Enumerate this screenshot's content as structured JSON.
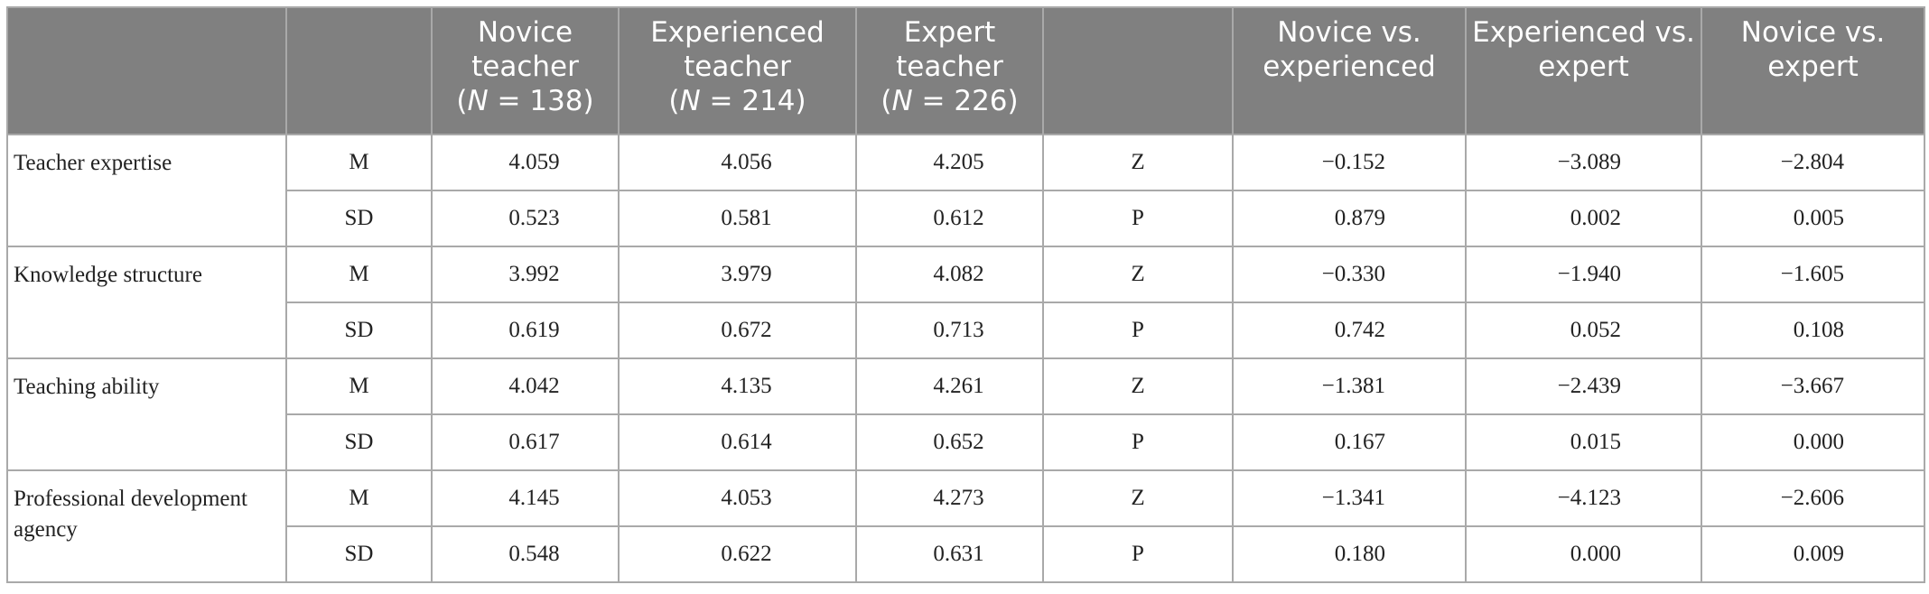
{
  "table": {
    "header": [
      {
        "pre": "Novice teacher",
        "open": "(",
        "italic": "N",
        "post": " = 138)"
      },
      {
        "pre": "Experienced teacher",
        "open": "(",
        "italic": "N",
        "post": " = 214)"
      },
      {
        "pre": "Expert teacher",
        "open": "(",
        "italic": "N",
        "post": " = 226)"
      },
      "Novice vs. experienced",
      "Experienced vs. expert",
      "Novice vs. expert"
    ],
    "groups": [
      {
        "label": "Teacher expertise",
        "rows": [
          {
            "stat": "M",
            "values": [
              "4.059",
              "4.056",
              "4.205"
            ],
            "test": "Z",
            "tests": [
              "−0.152",
              "−3.089",
              "−2.804"
            ]
          },
          {
            "stat": "SD",
            "values": [
              "0.523",
              "0.581",
              "0.612"
            ],
            "test": "P",
            "tests": [
              "0.879",
              "0.002",
              "0.005"
            ]
          }
        ]
      },
      {
        "label": "Knowledge structure",
        "rows": [
          {
            "stat": "M",
            "values": [
              "3.992",
              "3.979",
              "4.082"
            ],
            "test": "Z",
            "tests": [
              "−0.330",
              "−1.940",
              "−1.605"
            ]
          },
          {
            "stat": "SD",
            "values": [
              "0.619",
              "0.672",
              "0.713"
            ],
            "test": "P",
            "tests": [
              "0.742",
              "0.052",
              "0.108"
            ]
          }
        ]
      },
      {
        "label": "Teaching ability",
        "rows": [
          {
            "stat": "M",
            "values": [
              "4.042",
              "4.135",
              "4.261"
            ],
            "test": "Z",
            "tests": [
              "−1.381",
              "−2.439",
              "−3.667"
            ]
          },
          {
            "stat": "SD",
            "values": [
              "0.617",
              "0.614",
              "0.652"
            ],
            "test": "P",
            "tests": [
              "0.167",
              "0.015",
              "0.000"
            ]
          }
        ]
      },
      {
        "label": "Professional development agency",
        "rows": [
          {
            "stat": "M",
            "values": [
              "4.145",
              "4.053",
              "4.273"
            ],
            "test": "Z",
            "tests": [
              "−1.341",
              "−4.123",
              "−2.606"
            ]
          },
          {
            "stat": "SD",
            "values": [
              "0.548",
              "0.622",
              "0.631"
            ],
            "test": "P",
            "tests": [
              "0.180",
              "0.000",
              "0.009"
            ]
          }
        ]
      }
    ]
  }
}
